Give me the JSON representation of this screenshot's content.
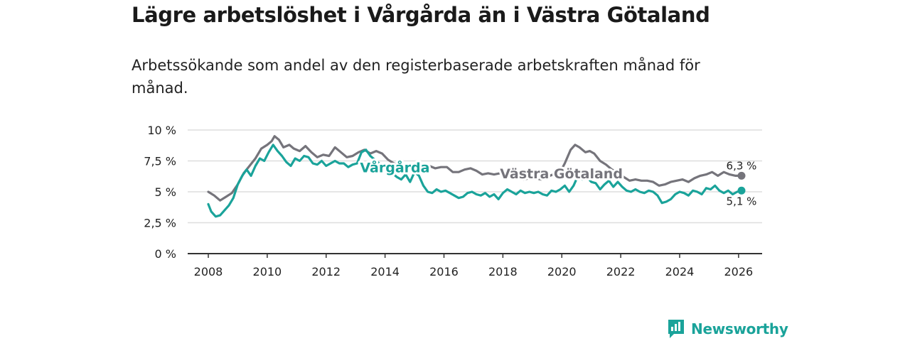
{
  "title": "Lägre arbetslöshet i Vårgårda än i Västra Götaland",
  "subtitle": "Arbetssökande som andel av den registerbaserade arbetskraften månad för månad.",
  "brand": "Newsworthy",
  "colors": {
    "vargarda": "#1aa39a",
    "vg": "#75747b",
    "grid": "#dedede",
    "axis": "#333333"
  },
  "chart_data": {
    "type": "line",
    "title": "Lägre arbetslöshet i Vårgårda än i Västra Götaland",
    "xlabel": "",
    "ylabel": "",
    "xlim": [
      2007.3,
      2026.8
    ],
    "ylim": [
      0,
      10
    ],
    "grid": true,
    "x_ticks": [
      2008,
      2010,
      2012,
      2014,
      2016,
      2018,
      2020,
      2022,
      2024,
      2026
    ],
    "x_tick_labels": [
      "2008",
      "2010",
      "2012",
      "2014",
      "2016",
      "2018",
      "2020",
      "2022",
      "2024",
      "2026"
    ],
    "y_ticks": [
      0,
      2.5,
      5,
      7.5,
      10
    ],
    "y_tick_labels": [
      "0 %",
      "2,5 %",
      "5 %",
      "7,5 %",
      "10 %"
    ],
    "series": [
      {
        "name": "Västra Götaland",
        "label": "Västra Götaland",
        "end_label": "6,3 %",
        "color": "#75747b",
        "points": [
          [
            2008.0,
            5.0
          ],
          [
            2008.2,
            4.7
          ],
          [
            2008.4,
            4.3
          ],
          [
            2008.6,
            4.6
          ],
          [
            2008.8,
            4.9
          ],
          [
            2009.0,
            5.6
          ],
          [
            2009.2,
            6.5
          ],
          [
            2009.4,
            7.1
          ],
          [
            2009.6,
            7.7
          ],
          [
            2009.8,
            8.5
          ],
          [
            2010.0,
            8.8
          ],
          [
            2010.15,
            9.1
          ],
          [
            2010.25,
            9.5
          ],
          [
            2010.4,
            9.2
          ],
          [
            2010.55,
            8.6
          ],
          [
            2010.75,
            8.8
          ],
          [
            2010.9,
            8.5
          ],
          [
            2011.1,
            8.3
          ],
          [
            2011.3,
            8.7
          ],
          [
            2011.5,
            8.2
          ],
          [
            2011.7,
            7.8
          ],
          [
            2011.9,
            8.0
          ],
          [
            2012.1,
            7.9
          ],
          [
            2012.3,
            8.6
          ],
          [
            2012.5,
            8.2
          ],
          [
            2012.7,
            7.8
          ],
          [
            2012.9,
            7.9
          ],
          [
            2013.1,
            8.2
          ],
          [
            2013.3,
            8.4
          ],
          [
            2013.5,
            8.1
          ],
          [
            2013.7,
            8.3
          ],
          [
            2013.9,
            8.1
          ],
          [
            2014.1,
            7.6
          ],
          [
            2014.3,
            7.3
          ],
          [
            2014.5,
            7.1
          ],
          [
            2014.7,
            7.2
          ],
          [
            2014.9,
            7.0
          ],
          [
            2015.1,
            7.0
          ],
          [
            2015.3,
            7.0
          ],
          [
            2015.5,
            7.1
          ],
          [
            2015.7,
            6.9
          ],
          [
            2015.9,
            7.0
          ],
          [
            2016.1,
            7.0
          ],
          [
            2016.3,
            6.6
          ],
          [
            2016.5,
            6.6
          ],
          [
            2016.7,
            6.8
          ],
          [
            2016.9,
            6.9
          ],
          [
            2017.1,
            6.7
          ],
          [
            2017.3,
            6.4
          ],
          [
            2017.5,
            6.5
          ],
          [
            2017.7,
            6.4
          ],
          [
            2017.9,
            6.5
          ],
          [
            2018.1,
            6.3
          ],
          [
            2018.3,
            6.1
          ],
          [
            2018.5,
            6.2
          ],
          [
            2018.7,
            6.0
          ],
          [
            2018.9,
            6.1
          ],
          [
            2019.1,
            6.1
          ],
          [
            2019.3,
            6.0
          ],
          [
            2019.5,
            6.2
          ],
          [
            2019.7,
            6.4
          ],
          [
            2019.9,
            6.4
          ],
          [
            2020.1,
            7.3
          ],
          [
            2020.3,
            8.4
          ],
          [
            2020.45,
            8.8
          ],
          [
            2020.6,
            8.6
          ],
          [
            2020.8,
            8.2
          ],
          [
            2020.95,
            8.3
          ],
          [
            2021.1,
            8.1
          ],
          [
            2021.3,
            7.5
          ],
          [
            2021.5,
            7.2
          ],
          [
            2021.7,
            6.8
          ],
          [
            2021.9,
            6.6
          ],
          [
            2022.1,
            6.2
          ],
          [
            2022.3,
            5.9
          ],
          [
            2022.5,
            6.0
          ],
          [
            2022.7,
            5.9
          ],
          [
            2022.9,
            5.9
          ],
          [
            2023.1,
            5.8
          ],
          [
            2023.3,
            5.5
          ],
          [
            2023.5,
            5.6
          ],
          [
            2023.7,
            5.8
          ],
          [
            2023.9,
            5.9
          ],
          [
            2024.1,
            6.0
          ],
          [
            2024.3,
            5.8
          ],
          [
            2024.5,
            6.1
          ],
          [
            2024.7,
            6.3
          ],
          [
            2024.9,
            6.4
          ],
          [
            2025.1,
            6.6
          ],
          [
            2025.3,
            6.3
          ],
          [
            2025.5,
            6.6
          ],
          [
            2025.7,
            6.4
          ],
          [
            2025.9,
            6.3
          ],
          [
            2026.1,
            6.3
          ]
        ]
      },
      {
        "name": "Vårgårda",
        "label": "Vårgårda",
        "end_label": "5,1 %",
        "color": "#1aa39a",
        "points": [
          [
            2008.0,
            4.0
          ],
          [
            2008.1,
            3.4
          ],
          [
            2008.25,
            3.0
          ],
          [
            2008.4,
            3.1
          ],
          [
            2008.55,
            3.5
          ],
          [
            2008.7,
            3.9
          ],
          [
            2008.85,
            4.5
          ],
          [
            2009.0,
            5.6
          ],
          [
            2009.15,
            6.3
          ],
          [
            2009.3,
            6.8
          ],
          [
            2009.45,
            6.3
          ],
          [
            2009.6,
            7.1
          ],
          [
            2009.75,
            7.7
          ],
          [
            2009.9,
            7.5
          ],
          [
            2010.05,
            8.2
          ],
          [
            2010.2,
            8.8
          ],
          [
            2010.35,
            8.3
          ],
          [
            2010.5,
            7.9
          ],
          [
            2010.65,
            7.4
          ],
          [
            2010.8,
            7.1
          ],
          [
            2010.95,
            7.7
          ],
          [
            2011.1,
            7.5
          ],
          [
            2011.25,
            7.9
          ],
          [
            2011.4,
            7.8
          ],
          [
            2011.55,
            7.3
          ],
          [
            2011.7,
            7.2
          ],
          [
            2011.85,
            7.5
          ],
          [
            2012.0,
            7.1
          ],
          [
            2012.15,
            7.3
          ],
          [
            2012.3,
            7.5
          ],
          [
            2012.45,
            7.3
          ],
          [
            2012.6,
            7.3
          ],
          [
            2012.75,
            7.0
          ],
          [
            2012.9,
            7.2
          ],
          [
            2013.05,
            7.3
          ],
          [
            2013.2,
            8.2
          ],
          [
            2013.35,
            8.4
          ],
          [
            2013.5,
            7.9
          ],
          [
            2013.65,
            7.6
          ],
          [
            2013.8,
            7.3
          ],
          [
            2013.95,
            7.0
          ],
          [
            2014.1,
            6.7
          ],
          [
            2014.25,
            6.5
          ],
          [
            2014.4,
            6.2
          ],
          [
            2014.55,
            6.0
          ],
          [
            2014.7,
            6.4
          ],
          [
            2014.85,
            5.8
          ],
          [
            2015.0,
            6.6
          ],
          [
            2015.15,
            6.3
          ],
          [
            2015.3,
            5.5
          ],
          [
            2015.45,
            5.0
          ],
          [
            2015.6,
            4.9
          ],
          [
            2015.75,
            5.2
          ],
          [
            2015.9,
            5.0
          ],
          [
            2016.05,
            5.1
          ],
          [
            2016.2,
            4.9
          ],
          [
            2016.35,
            4.7
          ],
          [
            2016.5,
            4.5
          ],
          [
            2016.65,
            4.6
          ],
          [
            2016.8,
            4.9
          ],
          [
            2016.95,
            5.0
          ],
          [
            2017.1,
            4.8
          ],
          [
            2017.25,
            4.7
          ],
          [
            2017.4,
            4.9
          ],
          [
            2017.55,
            4.6
          ],
          [
            2017.7,
            4.8
          ],
          [
            2017.85,
            4.4
          ],
          [
            2018.0,
            4.9
          ],
          [
            2018.15,
            5.2
          ],
          [
            2018.3,
            5.0
          ],
          [
            2018.45,
            4.8
          ],
          [
            2018.6,
            5.1
          ],
          [
            2018.75,
            4.9
          ],
          [
            2018.9,
            5.0
          ],
          [
            2019.05,
            4.9
          ],
          [
            2019.2,
            5.0
          ],
          [
            2019.35,
            4.8
          ],
          [
            2019.5,
            4.7
          ],
          [
            2019.65,
            5.1
          ],
          [
            2019.8,
            5.0
          ],
          [
            2019.95,
            5.2
          ],
          [
            2020.1,
            5.5
          ],
          [
            2020.25,
            5.0
          ],
          [
            2020.4,
            5.5
          ],
          [
            2020.55,
            6.3
          ],
          [
            2020.7,
            6.0
          ],
          [
            2020.85,
            6.2
          ],
          [
            2021.0,
            5.8
          ],
          [
            2021.15,
            5.7
          ],
          [
            2021.3,
            5.2
          ],
          [
            2021.45,
            5.6
          ],
          [
            2021.6,
            5.9
          ],
          [
            2021.75,
            5.4
          ],
          [
            2021.9,
            5.8
          ],
          [
            2022.05,
            5.4
          ],
          [
            2022.2,
            5.1
          ],
          [
            2022.35,
            5.0
          ],
          [
            2022.5,
            5.2
          ],
          [
            2022.65,
            5.0
          ],
          [
            2022.8,
            4.9
          ],
          [
            2022.95,
            5.1
          ],
          [
            2023.1,
            5.0
          ],
          [
            2023.25,
            4.7
          ],
          [
            2023.4,
            4.1
          ],
          [
            2023.55,
            4.2
          ],
          [
            2023.7,
            4.4
          ],
          [
            2023.85,
            4.8
          ],
          [
            2024.0,
            5.0
          ],
          [
            2024.15,
            4.9
          ],
          [
            2024.3,
            4.7
          ],
          [
            2024.45,
            5.1
          ],
          [
            2024.6,
            5.0
          ],
          [
            2024.75,
            4.8
          ],
          [
            2024.9,
            5.3
          ],
          [
            2025.05,
            5.2
          ],
          [
            2025.2,
            5.5
          ],
          [
            2025.35,
            5.1
          ],
          [
            2025.5,
            4.9
          ],
          [
            2025.65,
            5.1
          ],
          [
            2025.8,
            4.8
          ],
          [
            2025.95,
            5.0
          ],
          [
            2026.1,
            5.1
          ]
        ]
      }
    ]
  }
}
